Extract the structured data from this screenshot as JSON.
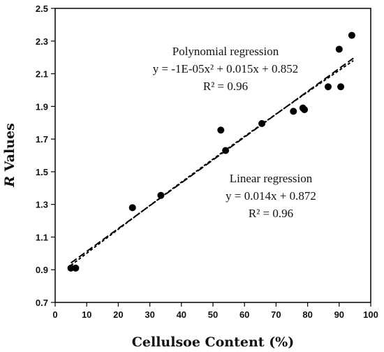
{
  "chart_data": {
    "type": "scatter",
    "xlabel": "Cellulsoe Content (%)",
    "ylabel_italic": "R",
    "ylabel_rest": " Values",
    "xlim": [
      0,
      100
    ],
    "ylim": [
      0.7,
      2.5
    ],
    "x_ticks": [
      0,
      10,
      20,
      30,
      40,
      50,
      60,
      70,
      80,
      90,
      100
    ],
    "y_ticks": [
      0.7,
      0.9,
      1.1,
      1.3,
      1.5,
      1.7,
      1.9,
      2.1,
      2.3,
      2.5
    ],
    "x_tick_labels": [
      "0",
      "10",
      "20",
      "30",
      "40",
      "50",
      "60",
      "70",
      "80",
      "90",
      "100"
    ],
    "y_tick_labels": [
      "0.7",
      "0.9",
      "1.1",
      "1.3",
      "1.5",
      "1.7",
      "1.9",
      "2.1",
      "2.3",
      "2.5"
    ],
    "grid": false,
    "series": [
      {
        "type": "scatter",
        "marker_color": "#000000",
        "points": [
          {
            "x": 5,
            "y": 0.91
          },
          {
            "x": 6.5,
            "y": 0.91
          },
          {
            "x": 24.5,
            "y": 1.28
          },
          {
            "x": 33.5,
            "y": 1.355
          },
          {
            "x": 52.5,
            "y": 1.755
          },
          {
            "x": 54,
            "y": 1.63
          },
          {
            "x": 65.5,
            "y": 1.795
          },
          {
            "x": 75.5,
            "y": 1.87
          },
          {
            "x": 78.5,
            "y": 1.89
          },
          {
            "x": 79,
            "y": 1.88
          },
          {
            "x": 86.5,
            "y": 2.02
          },
          {
            "x": 90,
            "y": 2.25
          },
          {
            "x": 90.5,
            "y": 2.02
          },
          {
            "x": 94,
            "y": 2.335
          }
        ]
      },
      {
        "type": "line",
        "line_style": "long-dash",
        "fit": "linear",
        "coefficients": {
          "slope": 0.014,
          "intercept": 0.872
        },
        "x_range": [
          5,
          94.5
        ]
      },
      {
        "type": "line",
        "line_style": "short-dash",
        "fit": "polynomial",
        "coefficients": {
          "a": -1e-05,
          "b": 0.015,
          "c": 0.852
        },
        "x_range": [
          5,
          94.5
        ]
      }
    ],
    "annotations": {
      "polynomial": {
        "title": "Polynomial regression",
        "equation": "y = -1E-05x² + 0.015x + 0.852",
        "r2": "R² = 0.96",
        "anchor_x": 59,
        "anchor_y": 2.35
      },
      "linear": {
        "title": "Linear regression",
        "equation": "y = 0.014x + 0.872",
        "r2": "R² = 0.96",
        "anchor_x": 79,
        "anchor_y": 1.57
      }
    }
  }
}
